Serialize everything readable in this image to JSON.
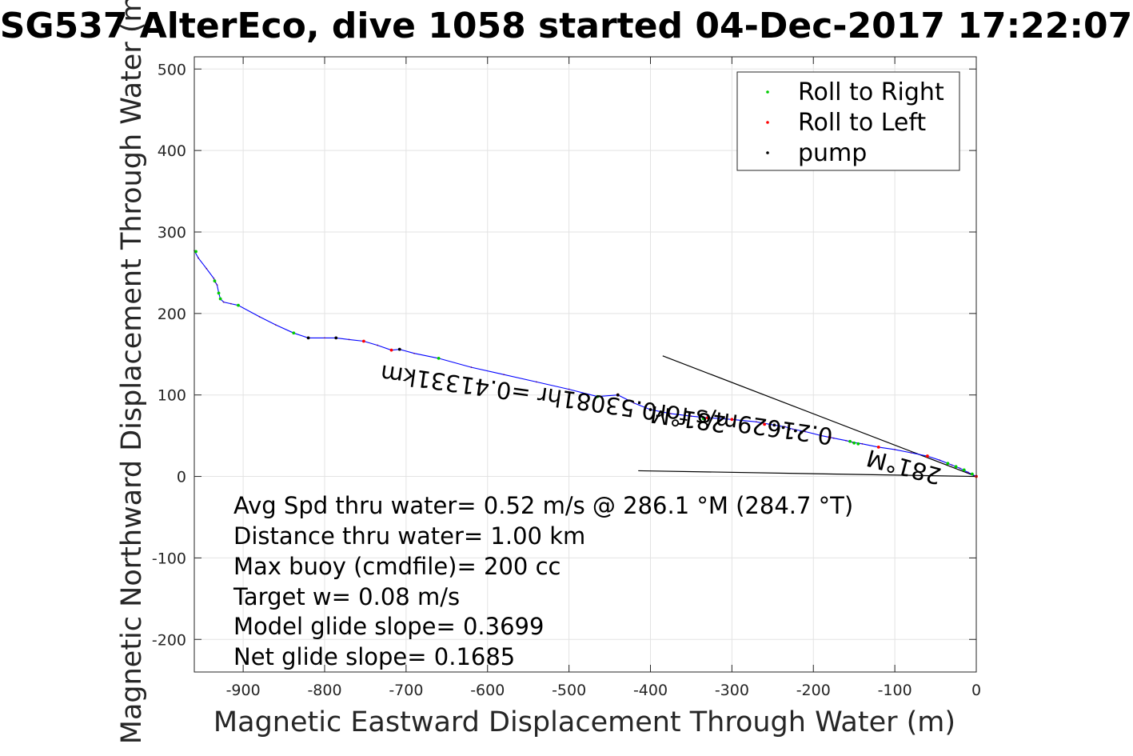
{
  "chart_data": {
    "type": "line",
    "title": "SG537 AlterEco, dive 1058 started 04-Dec-2017 17:22:07",
    "xlabel": "Magnetic Eastward Displacement Through Water (m)",
    "ylabel": "Magnetic Northward Displacement Through Water (m)",
    "xlim": [
      -960,
      0
    ],
    "ylim": [
      -240,
      515
    ],
    "xticks": [
      -900,
      -800,
      -700,
      -600,
      -500,
      -400,
      -300,
      -200,
      -100,
      0
    ],
    "yticks": [
      -200,
      -100,
      0,
      100,
      200,
      300,
      400,
      500
    ],
    "grid": true,
    "legend_position": "top-right",
    "legend": [
      {
        "label": "Roll to Right",
        "color": "#00cc00"
      },
      {
        "label": "Roll to Left",
        "color": "#ff0000"
      },
      {
        "label": "pump",
        "color": "#000000"
      }
    ],
    "series": [
      {
        "color": "#0000ff",
        "x": [
          0,
          -10,
          -20,
          -30,
          -45,
          -60,
          -80,
          -100,
          -120,
          -140,
          -152,
          -160,
          -175,
          -190,
          -210,
          -225,
          -235,
          -248,
          -270,
          -300,
          -330,
          -350,
          -375,
          -400,
          -420,
          -440,
          -465,
          -500,
          -540,
          -580,
          -620,
          -660,
          -690,
          -708,
          -718,
          -735,
          -752,
          -770,
          -786,
          -800,
          -820,
          -838,
          -860,
          -880,
          -906,
          -915,
          -924,
          -928,
          -930,
          -932,
          -934,
          -936,
          -945,
          -955,
          -960
        ],
        "y": [
          0,
          5,
          10,
          14,
          20,
          25,
          29,
          33,
          36,
          40,
          42,
          44,
          47,
          50,
          55,
          58,
          61,
          63,
          67,
          70,
          72,
          74,
          77,
          82,
          90,
          100,
          98,
          107,
          116,
          125,
          134,
          145,
          151,
          156,
          155,
          161,
          166,
          168,
          170,
          170,
          170,
          176,
          186,
          196,
          210,
          212,
          214,
          218,
          225,
          235,
          238,
          243,
          255,
          268,
          277
        ]
      }
    ],
    "markers": {
      "roll_right": {
        "color": "#00cc00",
        "x": [
          -5,
          -15,
          -25,
          -35,
          -145,
          -150,
          -155,
          -335,
          -465,
          -660,
          -838,
          -906,
          -928,
          -930,
          -935,
          -958
        ],
        "y": [
          3,
          8,
          12,
          16,
          40,
          41,
          43,
          71,
          98,
          145,
          176,
          210,
          218,
          225,
          240,
          276
        ]
      },
      "roll_left": {
        "color": "#ff0000",
        "x": [
          0,
          -60,
          -120,
          -180,
          -260,
          -300,
          -330,
          -440,
          -718,
          -752
        ],
        "y": [
          0,
          25,
          36,
          48,
          64,
          70,
          72,
          100,
          155,
          166
        ]
      },
      "pump": {
        "color": "#000000",
        "x": [
          -215,
          -222,
          -230,
          -237,
          -248,
          -400,
          -440,
          -708,
          -786,
          -820
        ],
        "y": [
          54,
          56,
          58,
          60,
          63,
          82,
          100,
          156,
          170,
          170
        ]
      }
    },
    "current_lines": [
      {
        "x": [
          -385,
          0
        ],
        "y": [
          148,
          0
        ]
      },
      {
        "x": [
          -415,
          0
        ],
        "y": [
          7,
          0
        ]
      }
    ],
    "rotated_labels": [
      "0.21629m/s for0.53081hr =0.41331km",
      "281°M",
      "281°M"
    ],
    "annotations": [
      "Avg Spd thru water=  0.52 m/s @ 286.1 °M (284.7 °T)",
      "Distance thru water=  1.00 km",
      "Max buoy (cmdfile)= 200 cc",
      "Target w= 0.08 m/s",
      "Model glide slope= 0.3699",
      "Net glide slope= 0.1685"
    ]
  }
}
